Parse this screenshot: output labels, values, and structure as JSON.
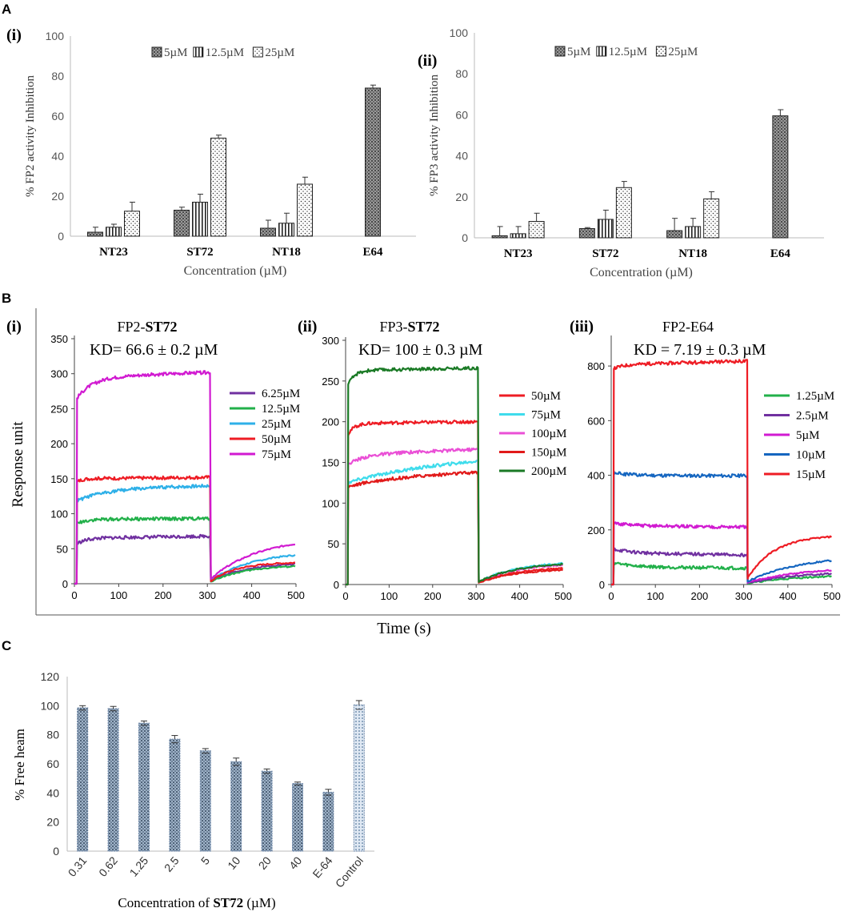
{
  "panels": {
    "A": "A",
    "B": "B",
    "C": "C"
  },
  "chart_data": [
    {
      "id": "A-i",
      "type": "bar",
      "sub": "(i)",
      "ylabel": "% FP2 activity  Inhibition",
      "xlabel": "Concentration (µM)",
      "categories": [
        "NT23",
        "ST72",
        "NT18",
        "E64"
      ],
      "ylim": [
        0,
        100
      ],
      "yticks": [
        0,
        20,
        40,
        60,
        80,
        100
      ],
      "legend_position": "top",
      "series": [
        {
          "name": "5µM",
          "values": [
            2,
            13,
            4,
            74
          ],
          "errors": [
            2.5,
            1.5,
            4,
            1.5
          ],
          "pattern": "dots-dark"
        },
        {
          "name": "12.5µM",
          "values": [
            4.5,
            17,
            6.5,
            null
          ],
          "errors": [
            1.5,
            4,
            5,
            null
          ],
          "pattern": "vstripe"
        },
        {
          "name": "25µM",
          "values": [
            12.5,
            49,
            26,
            null
          ],
          "errors": [
            4.5,
            1.5,
            3.5,
            null
          ],
          "pattern": "dots-light"
        }
      ]
    },
    {
      "id": "A-ii",
      "type": "bar",
      "sub": "(ii)",
      "ylabel": "% FP3 activity  Inhibition",
      "xlabel": "Concentration (µM)",
      "categories": [
        "NT23",
        "ST72",
        "NT18",
        "E64"
      ],
      "ylim": [
        0,
        100
      ],
      "yticks": [
        0,
        20,
        40,
        60,
        80,
        100
      ],
      "legend_position": "top",
      "series": [
        {
          "name": "5µM",
          "values": [
            1,
            4.5,
            3.5,
            59.5
          ],
          "errors": [
            4.5,
            0.5,
            6,
            3
          ],
          "pattern": "dots-dark"
        },
        {
          "name": "12.5µM",
          "values": [
            2,
            9,
            5.5,
            null
          ],
          "errors": [
            3.5,
            4.5,
            4,
            null
          ],
          "pattern": "vstripe"
        },
        {
          "name": "25µM",
          "values": [
            8,
            24.5,
            19,
            null
          ],
          "errors": [
            4,
            3,
            3.5,
            null
          ],
          "pattern": "dots-light"
        }
      ]
    },
    {
      "id": "B-i",
      "type": "line",
      "sub": "(i)",
      "title_prefix": "FP2-",
      "title_bold": "ST72",
      "kd": "KD= 66.6 ± 0.2 µM",
      "xlim": [
        0,
        500
      ],
      "ylim": [
        0,
        350
      ],
      "xticks": [
        0,
        100,
        200,
        300,
        400,
        500
      ],
      "yticks": [
        0,
        50,
        100,
        150,
        200,
        250,
        300,
        350
      ],
      "inject_s": 6,
      "dissoc_s": 307,
      "series": [
        {
          "name": "6.25µM",
          "color": "#7030a0",
          "assoc": [
            57,
            65,
            68
          ],
          "tau": 20,
          "end": 28,
          "diss_tau": 80
        },
        {
          "name": "12.5µM",
          "color": "#22b04a",
          "assoc": [
            86,
            92,
            93
          ],
          "tau": 20,
          "end": 25,
          "diss_tau": 80
        },
        {
          "name": "25µM",
          "color": "#2eb0e8",
          "assoc": [
            118,
            135,
            140
          ],
          "tau": 60,
          "end": 41,
          "diss_tau": 100
        },
        {
          "name": "50µM",
          "color": "#ee1c24",
          "assoc": [
            145,
            150,
            152
          ],
          "tau": 10,
          "end": 30,
          "diss_tau": 60
        },
        {
          "name": "75µM",
          "color": "#d11ad1",
          "assoc": [
            265,
            295,
            302
          ],
          "tau": 35,
          "end": 57,
          "diss_tau": 110
        }
      ]
    },
    {
      "id": "B-ii",
      "type": "line",
      "sub": "(ii)",
      "title_prefix": "FP3-",
      "title_bold": "ST72",
      "kd": "KD= 100 ± 0.3 µM",
      "xlim": [
        0,
        500
      ],
      "ylim": [
        0,
        300
      ],
      "xticks": [
        0,
        100,
        200,
        300,
        400,
        500
      ],
      "yticks": [
        0,
        50,
        100,
        150,
        200,
        250,
        300
      ],
      "inject_s": 6,
      "dissoc_s": 305,
      "series": [
        {
          "name": "50µM",
          "color": "#ee1c24",
          "assoc": [
            185,
            198,
            200
          ],
          "tau": 15,
          "end": 20,
          "diss_tau": 90
        },
        {
          "name": "75µM",
          "color": "#3fdcec",
          "assoc": [
            125,
            140,
            153
          ],
          "tau": 120,
          "end": 26,
          "diss_tau": 90
        },
        {
          "name": "100µM",
          "color": "#ea4fd6",
          "assoc": [
            148,
            160,
            166
          ],
          "tau": 40,
          "end": 24,
          "diss_tau": 90
        },
        {
          "name": "150µM",
          "color": "#e11a1a",
          "assoc": [
            120,
            130,
            138
          ],
          "tau": 80,
          "end": 18,
          "diss_tau": 90
        },
        {
          "name": "200µM",
          "color": "#1a7a25",
          "assoc": [
            245,
            263,
            266
          ],
          "tau": 15,
          "end": 25,
          "diss_tau": 90
        }
      ]
    },
    {
      "id": "B-iii",
      "type": "line",
      "sub": "(iii)",
      "title_prefix": "FP2-E64",
      "title_bold": "",
      "kd": "KD = 7.19 ± 0.3 µM",
      "xlim": [
        0,
        500
      ],
      "ylim": [
        0,
        900
      ],
      "xticks": [
        0,
        100,
        200,
        300,
        400,
        500
      ],
      "yticks": [
        0,
        200,
        400,
        600,
        800
      ],
      "inject_s": 6,
      "dissoc_s": 308,
      "series": [
        {
          "name": "1.25µM",
          "color": "#22b04a",
          "assoc": [
            80,
            65,
            60
          ],
          "tau": 40,
          "end": 30,
          "diss_tau": 120
        },
        {
          "name": "2.5µM",
          "color": "#7030a0",
          "assoc": [
            130,
            115,
            108
          ],
          "tau": 40,
          "end": 40,
          "diss_tau": 120
        },
        {
          "name": "5µM",
          "color": "#d11ad1",
          "assoc": [
            225,
            215,
            210
          ],
          "tau": 40,
          "end": 52,
          "diss_tau": 120
        },
        {
          "name": "10µM",
          "color": "#1566c0",
          "assoc": [
            410,
            400,
            398
          ],
          "tau": 30,
          "end": 88,
          "diss_tau": 120
        },
        {
          "name": "15µM",
          "color": "#ee1c24",
          "assoc": [
            790,
            805,
            818
          ],
          "tau": 20,
          "end": 175,
          "diss_tau": 60
        }
      ]
    },
    {
      "id": "C",
      "type": "bar",
      "ylabel": "% Free heam",
      "xlabel_prefix": "Concentration of ",
      "xlabel_bold": "ST72",
      "xlabel_suffix": " (µM)",
      "categories": [
        "0.31",
        "0.62",
        "1.25",
        "2.5",
        "5",
        "10",
        "20",
        "40",
        "E-64",
        "Control"
      ],
      "values": [
        98.5,
        98,
        88,
        77,
        69,
        61.5,
        55,
        46.5,
        40.5,
        100.5
      ],
      "errors": [
        1.5,
        1.5,
        1.5,
        2.5,
        1.5,
        2.5,
        1.5,
        1,
        2,
        3
      ],
      "ylim": [
        0,
        120
      ],
      "yticks": [
        0,
        20,
        40,
        60,
        80,
        100,
        120
      ]
    }
  ],
  "shared": {
    "ylabel_B": "Response unit",
    "xlabel_B": "Time (s)"
  }
}
